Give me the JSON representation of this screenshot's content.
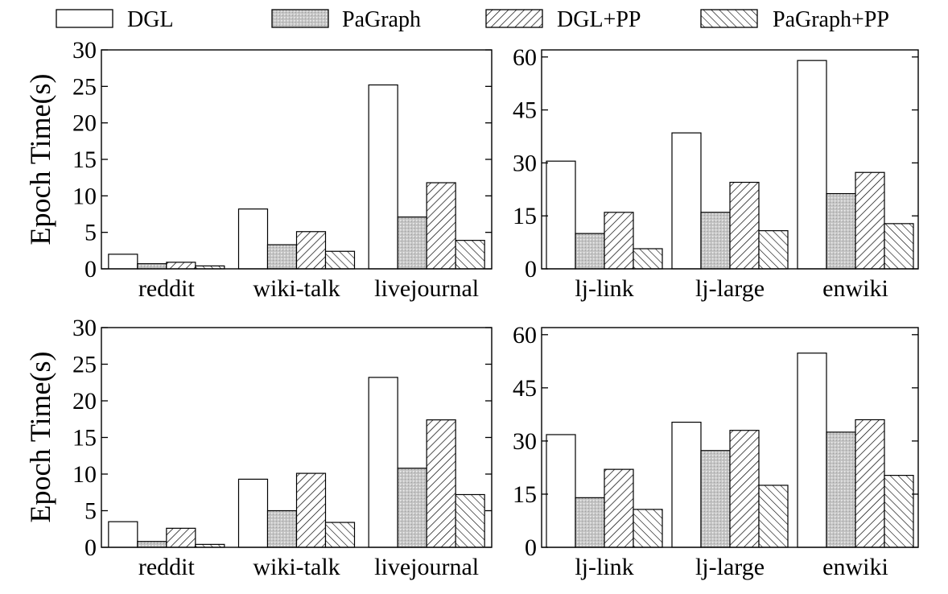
{
  "legend": [
    {
      "key": "dgl",
      "label": "DGL",
      "pattern": "white"
    },
    {
      "key": "pagraph",
      "label": "PaGraph",
      "pattern": "dots"
    },
    {
      "key": "dglpp",
      "label": "DGL+PP",
      "pattern": "diag-up"
    },
    {
      "key": "pagraphpp",
      "label": "PaGraph+PP",
      "pattern": "diag-down"
    }
  ],
  "chart_data": [
    {
      "type": "bar",
      "panel": "top-left",
      "ylabel": "Epoch Time(s)",
      "ylim": [
        0,
        30
      ],
      "yticks": [
        0,
        5,
        10,
        15,
        20,
        25,
        30
      ],
      "categories": [
        "reddit",
        "wiki-talk",
        "livejournal"
      ],
      "series": [
        {
          "name": "DGL",
          "values": [
            2.0,
            8.2,
            25.2
          ]
        },
        {
          "name": "PaGraph",
          "values": [
            0.7,
            3.3,
            7.1
          ]
        },
        {
          "name": "DGL+PP",
          "values": [
            0.9,
            5.1,
            11.8
          ]
        },
        {
          "name": "PaGraph+PP",
          "values": [
            0.4,
            2.4,
            3.9
          ]
        }
      ]
    },
    {
      "type": "bar",
      "panel": "top-right",
      "ylabel": "",
      "ylim": [
        0,
        62
      ],
      "yticks": [
        0,
        15,
        30,
        45,
        60
      ],
      "categories": [
        "lj-link",
        "lj-large",
        "enwiki"
      ],
      "series": [
        {
          "name": "DGL",
          "values": [
            30.5,
            38.5,
            59.0
          ]
        },
        {
          "name": "PaGraph",
          "values": [
            10.0,
            16.0,
            21.3
          ]
        },
        {
          "name": "DGL+PP",
          "values": [
            16.0,
            24.5,
            27.3
          ]
        },
        {
          "name": "PaGraph+PP",
          "values": [
            5.7,
            10.8,
            12.8
          ]
        }
      ]
    },
    {
      "type": "bar",
      "panel": "bottom-left",
      "ylabel": "Epoch Time(s)",
      "ylim": [
        0,
        30
      ],
      "yticks": [
        0,
        5,
        10,
        15,
        20,
        25,
        30
      ],
      "categories": [
        "reddit",
        "wiki-talk",
        "livejournal"
      ],
      "series": [
        {
          "name": "DGL",
          "values": [
            3.5,
            9.3,
            23.2
          ]
        },
        {
          "name": "PaGraph",
          "values": [
            0.8,
            5.0,
            10.8
          ]
        },
        {
          "name": "DGL+PP",
          "values": [
            2.6,
            10.1,
            17.4
          ]
        },
        {
          "name": "PaGraph+PP",
          "values": [
            0.4,
            3.4,
            7.2
          ]
        }
      ]
    },
    {
      "type": "bar",
      "panel": "bottom-right",
      "ylabel": "",
      "ylim": [
        0,
        62
      ],
      "yticks": [
        0,
        15,
        30,
        45,
        60
      ],
      "categories": [
        "lj-link",
        "lj-large",
        "enwiki"
      ],
      "series": [
        {
          "name": "DGL",
          "values": [
            31.8,
            35.3,
            54.8
          ]
        },
        {
          "name": "PaGraph",
          "values": [
            14.0,
            27.3,
            32.5
          ]
        },
        {
          "name": "DGL+PP",
          "values": [
            22.0,
            33.0,
            36.0
          ]
        },
        {
          "name": "PaGraph+PP",
          "values": [
            10.7,
            17.5,
            20.3
          ]
        }
      ]
    }
  ]
}
